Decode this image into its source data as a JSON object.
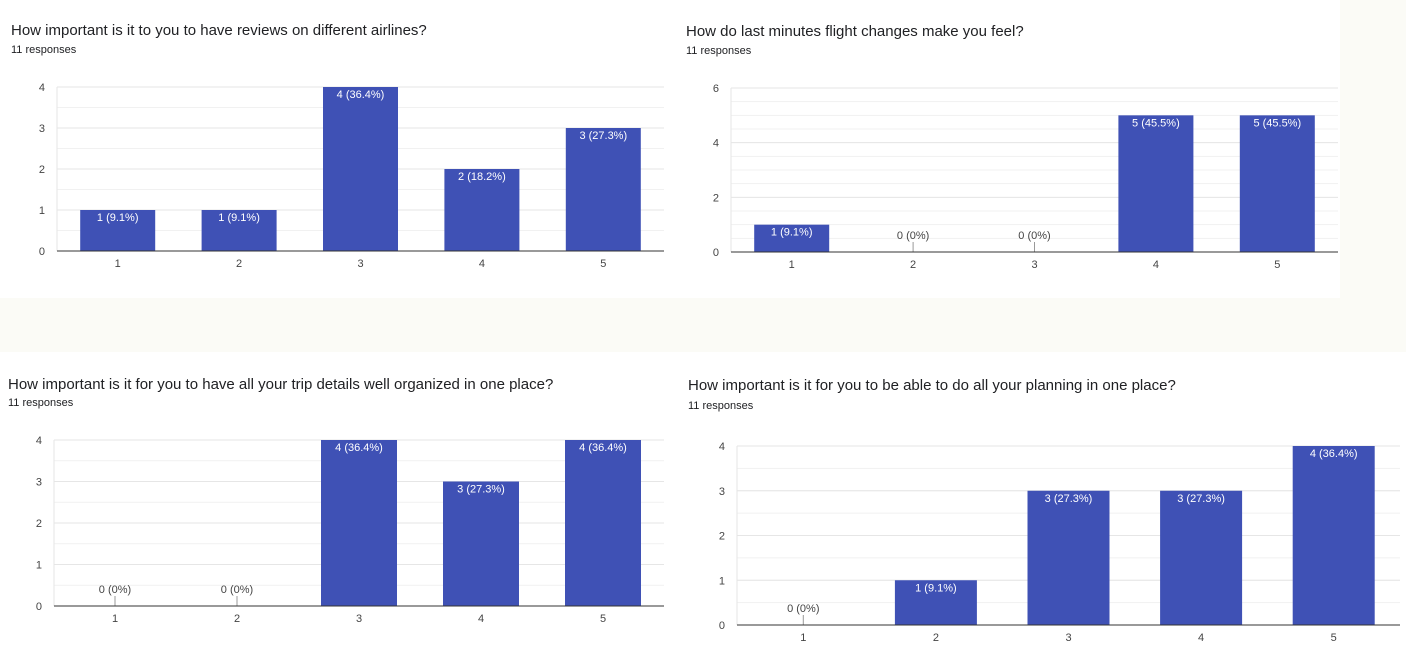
{
  "colors": {
    "bar": "#3f51b5",
    "grid": "#e6e6e6",
    "axis": "#333333",
    "label_inside": "#ffffff",
    "label_outside": "#444444"
  },
  "chart_data": [
    {
      "type": "bar",
      "title": "How important is it to you to have reviews on different airlines?",
      "subtitle": "11 responses",
      "categories": [
        "1",
        "2",
        "3",
        "4",
        "5"
      ],
      "values": [
        1,
        1,
        4,
        2,
        3
      ],
      "data_labels": [
        "1 (9.1%)",
        "1 (9.1%)",
        "4 (36.4%)",
        "2 (18.2%)",
        "3 (27.3%)"
      ],
      "yticks": [
        "0",
        "1",
        "2",
        "3",
        "4"
      ],
      "ylim": [
        0,
        4
      ],
      "grid": true
    },
    {
      "type": "bar",
      "title": "How do last minutes flight changes make you feel?",
      "subtitle": "11 responses",
      "categories": [
        "1",
        "2",
        "3",
        "4",
        "5"
      ],
      "values": [
        1,
        0,
        0,
        5,
        5
      ],
      "data_labels": [
        "1 (9.1%)",
        "0 (0%)",
        "0 (0%)",
        "5 (45.5%)",
        "5 (45.5%)"
      ],
      "yticks": [
        "0",
        "2",
        "4",
        "6"
      ],
      "ylim": [
        0,
        6
      ],
      "grid": true
    },
    {
      "type": "bar",
      "title": "How important is it for you to have all your trip details well organized in one place?",
      "subtitle": "11 responses",
      "categories": [
        "1",
        "2",
        "3",
        "4",
        "5"
      ],
      "values": [
        0,
        0,
        4,
        3,
        4
      ],
      "data_labels": [
        "0 (0%)",
        "0 (0%)",
        "4 (36.4%)",
        "3 (27.3%)",
        "4 (36.4%)"
      ],
      "yticks": [
        "0",
        "1",
        "2",
        "3",
        "4"
      ],
      "ylim": [
        0,
        4
      ],
      "grid": true
    },
    {
      "type": "bar",
      "title": "How important is it for you to be able to do all your planning in one place?",
      "subtitle": "11 responses",
      "categories": [
        "1",
        "2",
        "3",
        "4",
        "5"
      ],
      "values": [
        0,
        1,
        3,
        3,
        4
      ],
      "data_labels": [
        "0 (0%)",
        "1 (9.1%)",
        "3 (27.3%)",
        "3 (27.3%)",
        "4 (36.4%)"
      ],
      "yticks": [
        "0",
        "1",
        "2",
        "3",
        "4"
      ],
      "ylim": [
        0,
        4
      ],
      "grid": true
    }
  ]
}
